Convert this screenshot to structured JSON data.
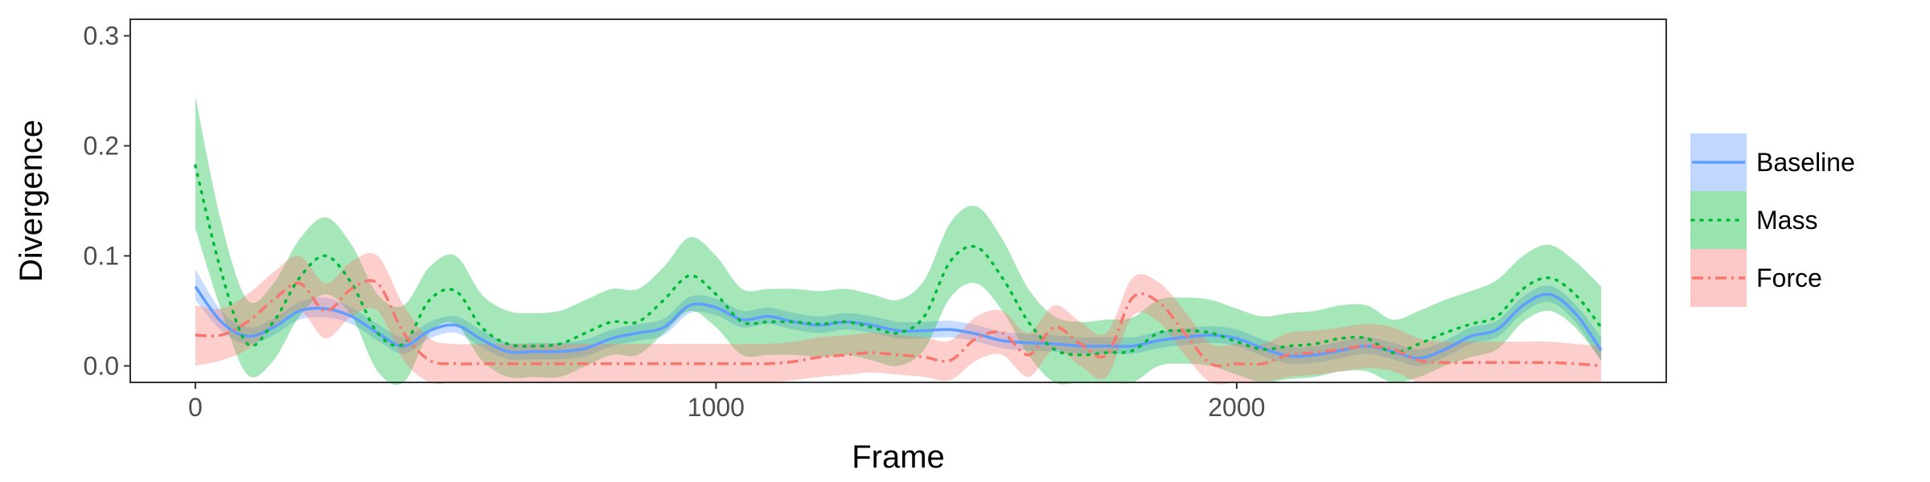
{
  "chart_data": {
    "type": "line",
    "xlabel": "Frame",
    "ylabel": "Divergence",
    "xlim": [
      -125,
      2825
    ],
    "ylim": [
      -0.015,
      0.315
    ],
    "xticks": [
      0,
      1000,
      2000
    ],
    "xtick_labels": [
      "0",
      "1000",
      "2000"
    ],
    "yticks": [
      0.0,
      0.1,
      0.2,
      0.3
    ],
    "ytick_labels": [
      "0.0",
      "0.1",
      "0.2",
      "0.3"
    ],
    "grid": false,
    "legend_position": "right",
    "x": [
      0,
      50,
      100,
      150,
      200,
      250,
      300,
      350,
      400,
      450,
      500,
      550,
      600,
      650,
      700,
      750,
      800,
      850,
      900,
      950,
      1000,
      1050,
      1100,
      1150,
      1200,
      1250,
      1300,
      1350,
      1400,
      1450,
      1500,
      1550,
      1600,
      1650,
      1700,
      1750,
      1800,
      1850,
      1900,
      1950,
      2000,
      2050,
      2100,
      2150,
      2200,
      2250,
      2300,
      2350,
      2400,
      2450,
      2500,
      2550,
      2600,
      2650,
      2700
    ],
    "series": [
      {
        "name": "Baseline",
        "color": "#619CFF",
        "linestyle": "solid",
        "values": [
          0.072,
          0.04,
          0.027,
          0.035,
          0.05,
          0.052,
          0.045,
          0.03,
          0.018,
          0.032,
          0.037,
          0.024,
          0.013,
          0.013,
          0.013,
          0.016,
          0.025,
          0.03,
          0.035,
          0.055,
          0.053,
          0.042,
          0.045,
          0.04,
          0.037,
          0.04,
          0.037,
          0.032,
          0.032,
          0.033,
          0.029,
          0.023,
          0.021,
          0.02,
          0.018,
          0.018,
          0.018,
          0.023,
          0.026,
          0.028,
          0.025,
          0.016,
          0.009,
          0.01,
          0.014,
          0.018,
          0.013,
          0.007,
          0.015,
          0.027,
          0.033,
          0.055,
          0.065,
          0.048,
          0.014
        ],
        "lower": [
          0.06,
          0.032,
          0.02,
          0.028,
          0.042,
          0.044,
          0.038,
          0.023,
          0.011,
          0.025,
          0.03,
          0.017,
          0.006,
          0.006,
          0.006,
          0.009,
          0.018,
          0.023,
          0.028,
          0.048,
          0.046,
          0.035,
          0.038,
          0.033,
          0.03,
          0.033,
          0.03,
          0.025,
          0.025,
          0.026,
          0.022,
          0.016,
          0.014,
          0.013,
          0.011,
          0.011,
          0.011,
          0.016,
          0.019,
          0.021,
          0.018,
          0.009,
          0.002,
          0.003,
          0.007,
          0.011,
          0.006,
          0.0,
          0.008,
          0.02,
          0.026,
          0.048,
          0.058,
          0.04,
          0.004
        ],
        "upper": [
          0.088,
          0.05,
          0.035,
          0.043,
          0.058,
          0.062,
          0.053,
          0.038,
          0.026,
          0.04,
          0.045,
          0.032,
          0.021,
          0.021,
          0.021,
          0.024,
          0.033,
          0.038,
          0.043,
          0.063,
          0.061,
          0.05,
          0.053,
          0.048,
          0.045,
          0.048,
          0.045,
          0.04,
          0.04,
          0.041,
          0.037,
          0.031,
          0.029,
          0.028,
          0.026,
          0.026,
          0.026,
          0.031,
          0.034,
          0.036,
          0.033,
          0.024,
          0.017,
          0.018,
          0.022,
          0.026,
          0.021,
          0.015,
          0.023,
          0.035,
          0.041,
          0.063,
          0.073,
          0.056,
          0.026
        ]
      },
      {
        "name": "Mass",
        "color": "#00BA38",
        "linestyle": "dotted",
        "values": [
          0.182,
          0.085,
          0.02,
          0.04,
          0.08,
          0.1,
          0.075,
          0.03,
          0.02,
          0.06,
          0.068,
          0.035,
          0.02,
          0.018,
          0.02,
          0.03,
          0.04,
          0.04,
          0.06,
          0.082,
          0.065,
          0.04,
          0.04,
          0.04,
          0.038,
          0.04,
          0.035,
          0.03,
          0.045,
          0.095,
          0.108,
          0.08,
          0.04,
          0.015,
          0.01,
          0.012,
          0.014,
          0.03,
          0.032,
          0.03,
          0.022,
          0.015,
          0.018,
          0.02,
          0.025,
          0.025,
          0.012,
          0.02,
          0.03,
          0.038,
          0.045,
          0.07,
          0.08,
          0.065,
          0.035
        ],
        "lower": [
          0.125,
          0.05,
          -0.008,
          0.005,
          0.045,
          0.065,
          0.045,
          -0.005,
          -0.015,
          0.03,
          0.038,
          0.005,
          -0.01,
          -0.01,
          -0.01,
          0.0,
          0.01,
          0.01,
          0.03,
          0.05,
          0.035,
          0.01,
          0.01,
          0.01,
          0.008,
          0.01,
          0.005,
          0.0,
          0.015,
          0.062,
          0.075,
          0.05,
          0.01,
          -0.015,
          -0.015,
          -0.015,
          -0.015,
          0.0,
          0.002,
          0.0,
          -0.008,
          -0.015,
          -0.012,
          -0.01,
          -0.005,
          -0.005,
          -0.015,
          -0.01,
          0.0,
          0.008,
          0.015,
          0.04,
          0.05,
          0.035,
          0.005
        ],
        "upper": [
          0.245,
          0.13,
          0.06,
          0.075,
          0.115,
          0.135,
          0.11,
          0.065,
          0.055,
          0.09,
          0.1,
          0.065,
          0.05,
          0.048,
          0.05,
          0.06,
          0.07,
          0.07,
          0.09,
          0.117,
          0.1,
          0.07,
          0.07,
          0.07,
          0.068,
          0.07,
          0.065,
          0.06,
          0.078,
          0.13,
          0.145,
          0.115,
          0.07,
          0.045,
          0.04,
          0.042,
          0.044,
          0.06,
          0.062,
          0.06,
          0.052,
          0.045,
          0.048,
          0.05,
          0.055,
          0.055,
          0.042,
          0.05,
          0.06,
          0.068,
          0.078,
          0.1,
          0.11,
          0.095,
          0.072
        ]
      },
      {
        "name": "Force",
        "color": "#F8766D",
        "linestyle": "dashdot",
        "values": [
          0.028,
          0.028,
          0.04,
          0.06,
          0.075,
          0.05,
          0.07,
          0.075,
          0.03,
          0.005,
          0.002,
          0.002,
          0.002,
          0.002,
          0.002,
          0.002,
          0.002,
          0.002,
          0.002,
          0.002,
          0.002,
          0.002,
          0.002,
          0.004,
          0.008,
          0.01,
          0.012,
          0.01,
          0.008,
          0.005,
          0.025,
          0.03,
          0.01,
          0.035,
          0.02,
          0.01,
          0.062,
          0.058,
          0.03,
          0.002,
          0.002,
          0.002,
          0.01,
          0.012,
          0.015,
          0.018,
          0.015,
          0.005,
          0.003,
          0.003,
          0.003,
          0.003,
          0.003,
          0.002,
          0.0
        ],
        "lower": [
          0.0,
          0.005,
          0.015,
          0.035,
          0.05,
          0.025,
          0.045,
          0.05,
          0.005,
          -0.015,
          -0.015,
          -0.015,
          -0.015,
          -0.015,
          -0.015,
          -0.015,
          -0.015,
          -0.015,
          -0.015,
          -0.015,
          -0.015,
          -0.015,
          -0.015,
          -0.013,
          -0.01,
          -0.008,
          -0.006,
          -0.008,
          -0.01,
          -0.013,
          0.005,
          0.01,
          -0.01,
          0.015,
          0.0,
          -0.01,
          0.045,
          0.04,
          0.01,
          -0.015,
          -0.015,
          -0.015,
          -0.01,
          -0.008,
          -0.005,
          -0.002,
          -0.005,
          -0.015,
          -0.015,
          -0.015,
          -0.015,
          -0.015,
          -0.015,
          -0.015,
          -0.015
        ],
        "upper": [
          0.055,
          0.052,
          0.065,
          0.085,
          0.1,
          0.075,
          0.095,
          0.1,
          0.055,
          0.025,
          0.02,
          0.02,
          0.02,
          0.02,
          0.02,
          0.02,
          0.02,
          0.02,
          0.02,
          0.02,
          0.02,
          0.02,
          0.02,
          0.022,
          0.026,
          0.028,
          0.03,
          0.028,
          0.026,
          0.023,
          0.045,
          0.05,
          0.03,
          0.055,
          0.04,
          0.03,
          0.08,
          0.076,
          0.05,
          0.02,
          0.02,
          0.02,
          0.03,
          0.032,
          0.035,
          0.038,
          0.035,
          0.025,
          0.022,
          0.022,
          0.022,
          0.022,
          0.022,
          0.02,
          0.018
        ]
      }
    ]
  }
}
